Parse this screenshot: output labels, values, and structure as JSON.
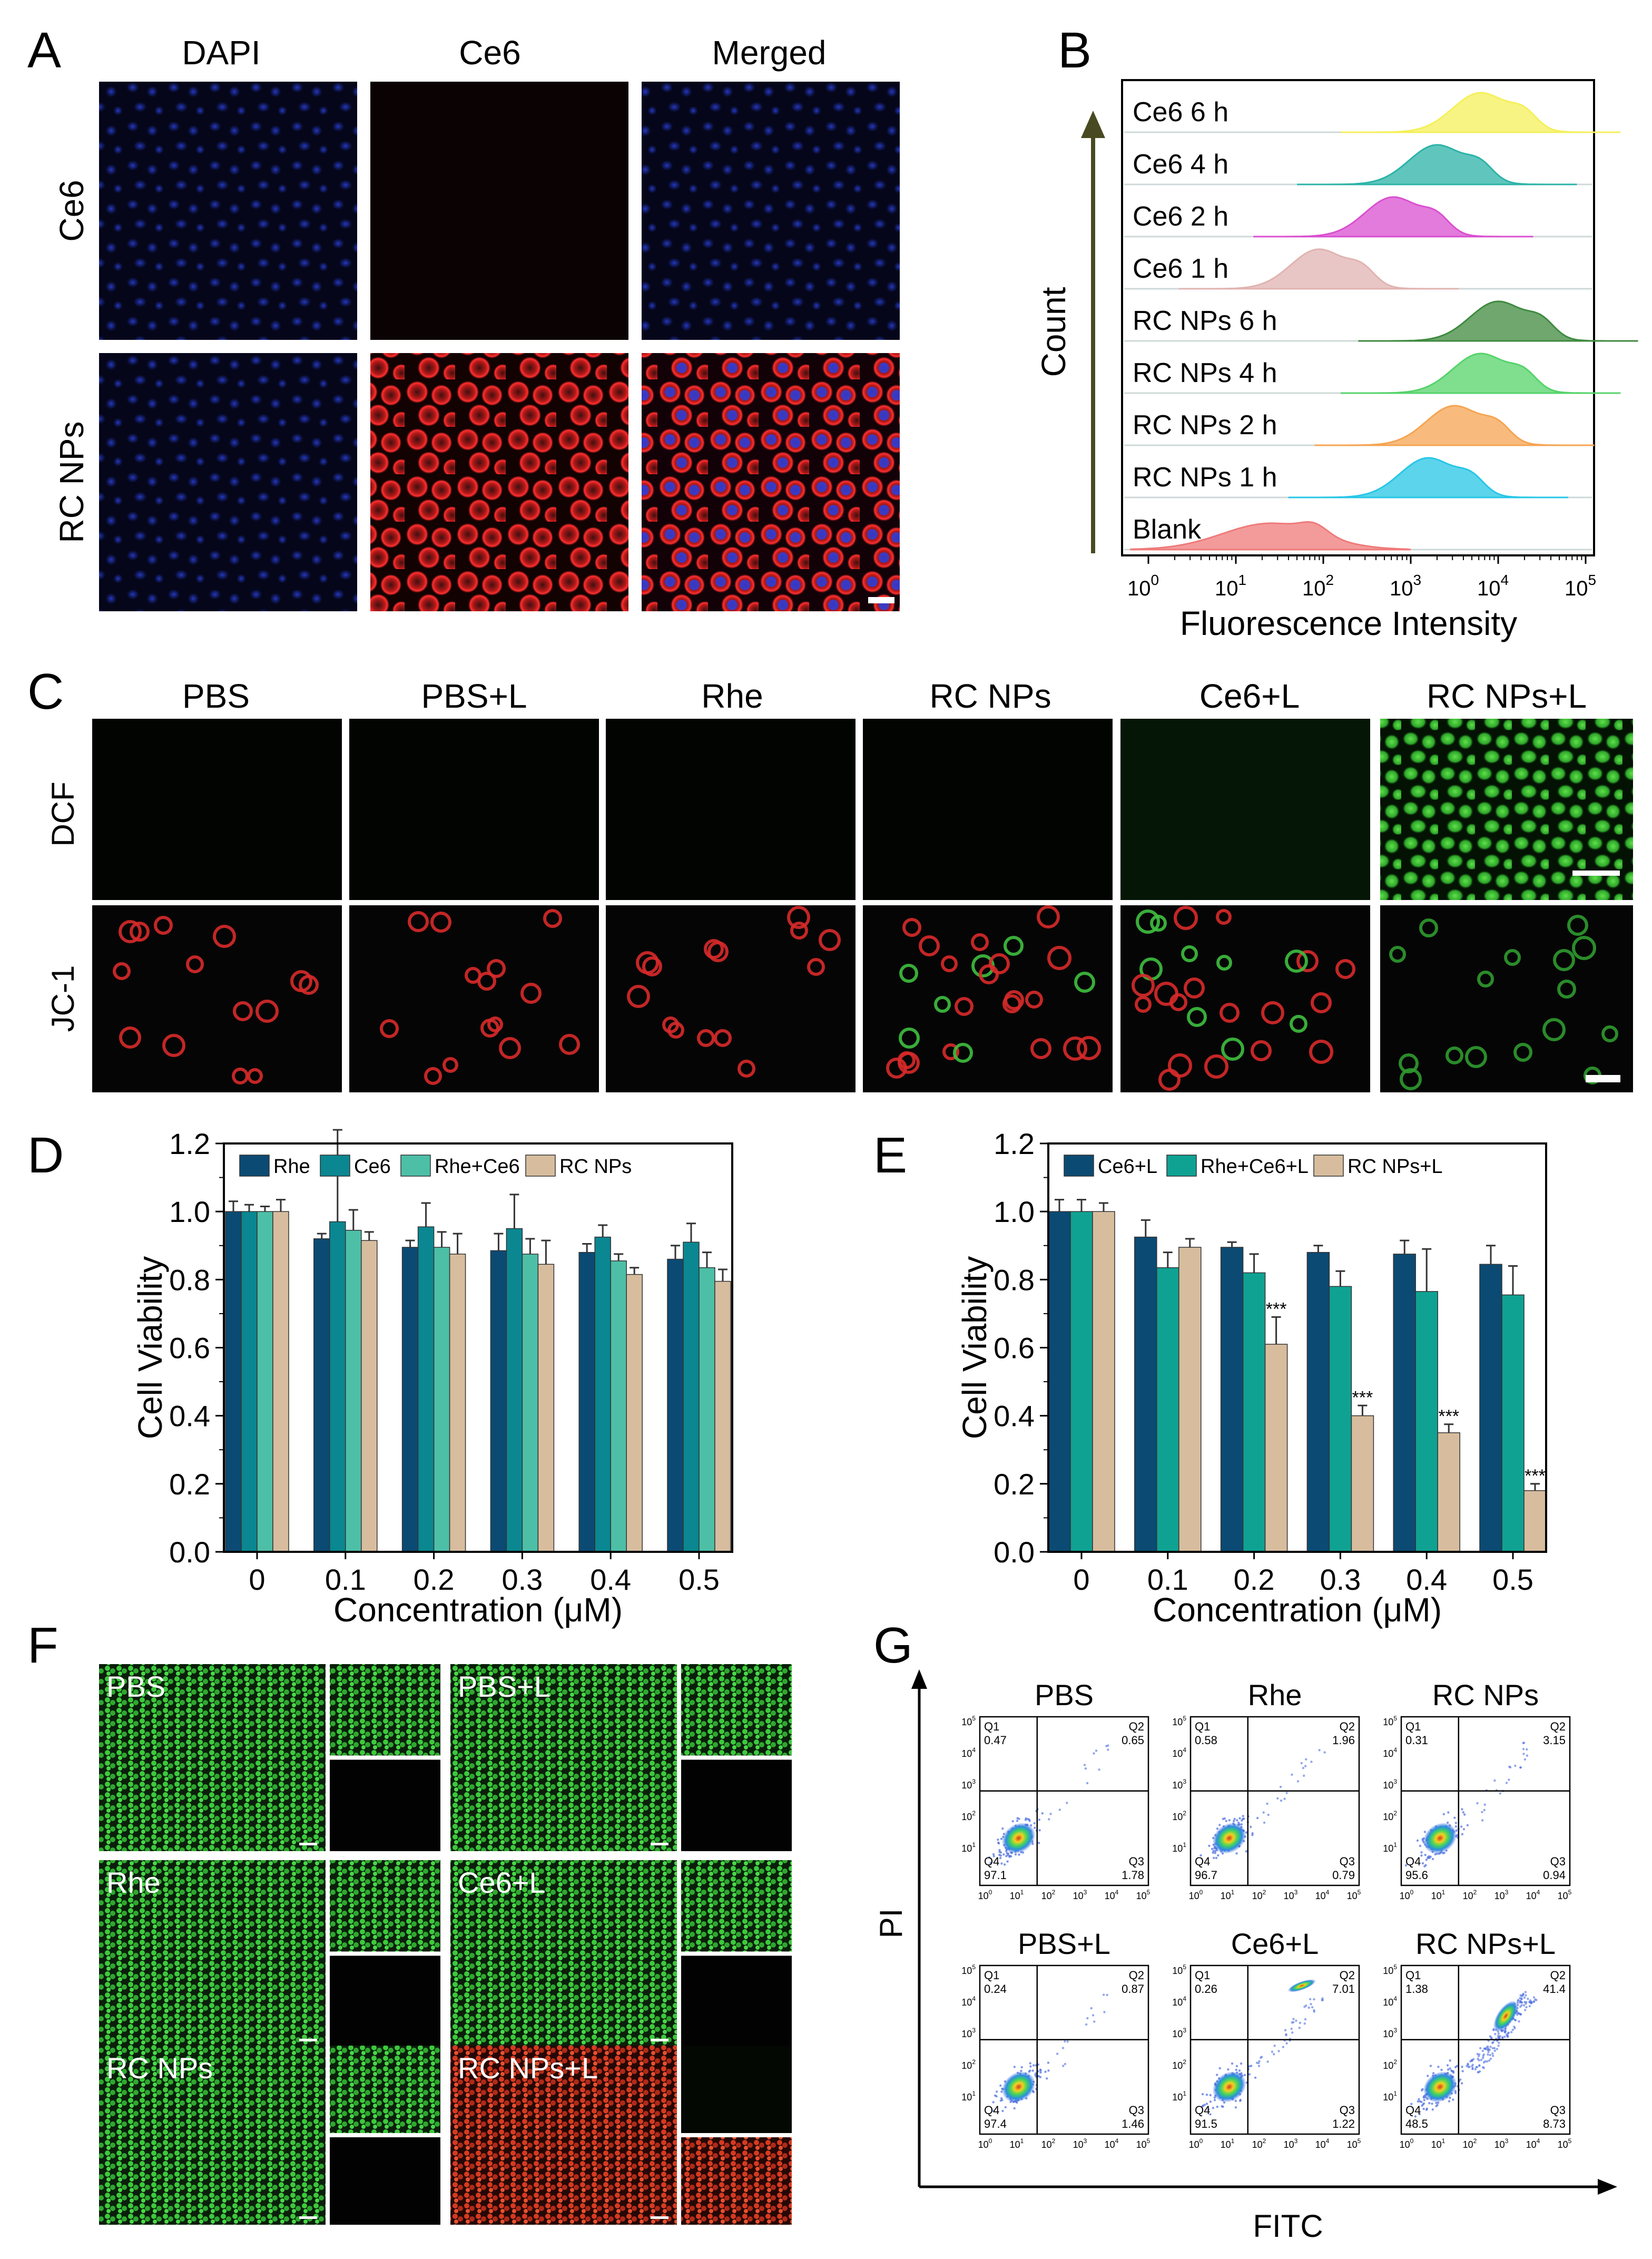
{
  "panel_letters": {
    "a": "A",
    "b": "B",
    "c": "C",
    "d": "D",
    "e": "E",
    "f": "F",
    "g": "G"
  },
  "panel_a": {
    "columns": [
      "DAPI",
      "Ce6",
      "Merged"
    ],
    "rows": [
      "Ce6",
      "RC NPs"
    ]
  },
  "panel_b": {
    "labels": [
      "Ce6 6 h",
      "Ce6 4 h",
      "Ce6 2 h",
      "Ce6 1 h",
      "RC NPs 6 h",
      "RC NPs 4 h",
      "RC NPs 2 h",
      "RC NPs 1 h",
      "Blank"
    ],
    "colors": [
      "#f4f05a",
      "#2bb3a7",
      "#d94fd0",
      "#e0b3b1",
      "#3f8a3f",
      "#55d36a",
      "#f5a451",
      "#26c6e6",
      "#ef7a7a"
    ],
    "peaks": [
      3.8,
      3.3,
      2.8,
      1.95,
      4.0,
      3.8,
      3.5,
      3.2,
      1.4
    ],
    "xlabel": "Fluorescence Intensity",
    "ylabel": "Count",
    "ticks": [
      "10",
      "10",
      "10",
      "10",
      "10",
      "10"
    ],
    "tick_exp": [
      "0",
      "1",
      "2",
      "3",
      "4",
      "5"
    ]
  },
  "panel_c": {
    "columns": [
      "PBS",
      "PBS+L",
      "Rhe",
      "RC NPs",
      "Ce6+L",
      "RC NPs+L"
    ],
    "rows": [
      "DCF",
      "JC-1"
    ]
  },
  "chart_data": [
    {
      "type": "bar",
      "panel": "D",
      "categories": [
        "0",
        "0.1",
        "0.2",
        "0.3",
        "0.4",
        "0.5"
      ],
      "series": [
        {
          "name": "Rhe",
          "color": "#0b4a73",
          "values": [
            1.0,
            0.92,
            0.895,
            0.885,
            0.88,
            0.86
          ],
          "errors": [
            0.03,
            0.015,
            0.02,
            0.05,
            0.025,
            0.04
          ]
        },
        {
          "name": "Ce6",
          "color": "#0a8791",
          "values": [
            1.0,
            0.97,
            0.955,
            0.95,
            0.925,
            0.91
          ],
          "errors": [
            0.02,
            0.27,
            0.07,
            0.1,
            0.035,
            0.055
          ]
        },
        {
          "name": "Rhe+Ce6",
          "color": "#4dbfa7",
          "values": [
            1.0,
            0.945,
            0.895,
            0.875,
            0.855,
            0.835
          ],
          "errors": [
            0.015,
            0.06,
            0.045,
            0.045,
            0.02,
            0.045
          ]
        },
        {
          "name": "RC NPs",
          "color": "#d7bd9e",
          "values": [
            1.0,
            0.915,
            0.875,
            0.845,
            0.815,
            0.795
          ],
          "errors": [
            0.035,
            0.025,
            0.06,
            0.07,
            0.02,
            0.035
          ]
        }
      ],
      "stars": [],
      "xlabel": "Concentration (μM)",
      "ylabel": "Cell Viability",
      "ylim": [
        0,
        1.2
      ],
      "yticks": [
        "0.0",
        "0.2",
        "0.4",
        "0.6",
        "0.8",
        "1.0",
        "1.2"
      ]
    },
    {
      "type": "bar",
      "panel": "E",
      "categories": [
        "0",
        "0.1",
        "0.2",
        "0.3",
        "0.4",
        "0.5"
      ],
      "series": [
        {
          "name": "Ce6+L",
          "color": "#0b4a73",
          "values": [
            1.0,
            0.925,
            0.895,
            0.88,
            0.875,
            0.845
          ],
          "errors": [
            0.035,
            0.05,
            0.015,
            0.02,
            0.04,
            0.055
          ]
        },
        {
          "name": "Rhe+Ce6+L",
          "color": "#0fa293",
          "values": [
            1.0,
            0.835,
            0.82,
            0.78,
            0.765,
            0.755
          ],
          "errors": [
            0.035,
            0.045,
            0.055,
            0.045,
            0.125,
            0.085
          ]
        },
        {
          "name": "RC NPs+L",
          "color": "#d7bd9e",
          "values": [
            1.0,
            0.895,
            0.61,
            0.4,
            0.35,
            0.18
          ],
          "errors": [
            0.025,
            0.025,
            0.08,
            0.03,
            0.025,
            0.02
          ]
        }
      ],
      "stars": [
        {
          "series": 2,
          "index": 2,
          "text": "***"
        },
        {
          "series": 2,
          "index": 3,
          "text": "***"
        },
        {
          "series": 2,
          "index": 4,
          "text": "***"
        },
        {
          "series": 2,
          "index": 5,
          "text": "***"
        }
      ],
      "xlabel": "Concentration (μM)",
      "ylabel": "Cell Viability",
      "ylim": [
        0,
        1.2
      ],
      "yticks": [
        "0.0",
        "0.2",
        "0.4",
        "0.6",
        "0.8",
        "1.0",
        "1.2"
      ]
    }
  ],
  "panel_f": {
    "labels": [
      "PBS",
      "PBS+L",
      "Rhe",
      "Ce6+L",
      "RC NPs",
      "RC NPs+L"
    ]
  },
  "panel_g": {
    "plots": [
      {
        "title": "PBS",
        "q1": "0.47",
        "q2": "0.65",
        "q3": "1.78",
        "q4": "97.1"
      },
      {
        "title": "Rhe",
        "q1": "0.58",
        "q2": "1.96",
        "q3": "0.79",
        "q4": "96.7"
      },
      {
        "title": "RC NPs",
        "q1": "0.31",
        "q2": "3.15",
        "q3": "0.94",
        "q4": "95.6"
      },
      {
        "title": "PBS+L",
        "q1": "0.24",
        "q2": "0.87",
        "q3": "1.46",
        "q4": "97.4"
      },
      {
        "title": "Ce6+L",
        "q1": "0.26",
        "q2": "7.01",
        "q3": "1.22",
        "q4": "91.5"
      },
      {
        "title": "RC NPs+L",
        "q1": "1.38",
        "q2": "41.4",
        "q3": "8.73",
        "q4": "48.5"
      }
    ],
    "qnames": [
      "Q1",
      "Q2",
      "Q3",
      "Q4"
    ],
    "xlabel": "FITC",
    "ylabel": "PI",
    "axis_ticks": [
      "10",
      "10",
      "10",
      "10",
      "10",
      "10"
    ],
    "axis_exp": [
      "0",
      "1",
      "2",
      "3",
      "4",
      "5"
    ]
  }
}
